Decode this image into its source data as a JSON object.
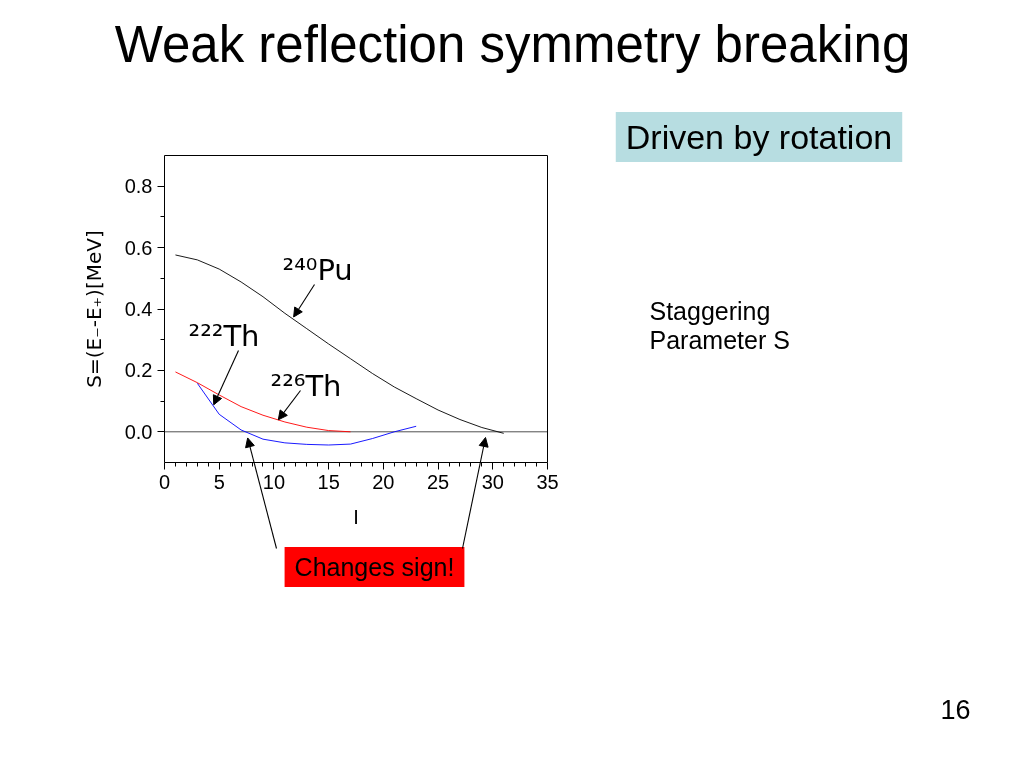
{
  "chart_data": {
    "type": "line",
    "title": "Weak reflection symmetry breaking",
    "xlabel": "I",
    "ylabel": "S=(E₋-E₊)[MeV]",
    "series": [
      {
        "color": "#000000",
        "x": [
          1,
          3,
          5,
          7,
          9,
          11,
          13,
          15,
          17,
          19,
          21,
          23,
          25,
          27,
          29,
          31
        ],
        "values": [
          0.576,
          0.56,
          0.53,
          0.488,
          0.44,
          0.386,
          0.336,
          0.286,
          0.238,
          0.19,
          0.146,
          0.108,
          0.071,
          0.04,
          0.014,
          -0.005
        ]
      },
      {
        "color": "#ff0000",
        "x": [
          1,
          3,
          5,
          7,
          9,
          11,
          13,
          15,
          17
        ],
        "values": [
          0.195,
          0.16,
          0.12,
          0.082,
          0.054,
          0.032,
          0.015,
          0.004,
          0.0
        ]
      },
      {
        "color": "#0000ff",
        "x": [
          3,
          5,
          7,
          9,
          11,
          13,
          15,
          17,
          19,
          21,
          23
        ],
        "values": [
          0.158,
          0.057,
          0.006,
          -0.024,
          -0.036,
          -0.041,
          -0.043,
          -0.04,
          -0.022,
          0.0,
          0.018
        ]
      }
    ],
    "xlim": [
      0,
      35
    ],
    "ylim": [
      -0.1,
      0.9
    ],
    "xticks": [
      0,
      {
        "value": 1,
        "label": null
      },
      {
        "value": 2,
        "label": null
      },
      {
        "value": 3,
        "label": null
      },
      {
        "value": 4,
        "label": null
      },
      5,
      {
        "value": 6,
        "label": null
      },
      {
        "value": 7,
        "label": null
      },
      {
        "value": 8,
        "label": null
      },
      {
        "value": 9,
        "label": null
      },
      10,
      {
        "value": 11,
        "label": null
      },
      {
        "value": 12,
        "label": null
      },
      {
        "value": 13,
        "label": null
      },
      {
        "value": 14,
        "label": null
      },
      15,
      {
        "value": 16,
        "label": null
      },
      {
        "value": 17,
        "label": null
      },
      {
        "value": 18,
        "label": null
      },
      {
        "value": 19,
        "label": null
      },
      20,
      {
        "value": 21,
        "label": null
      },
      {
        "value": 22,
        "label": null
      },
      {
        "value": 23,
        "label": null
      },
      {
        "value": 24,
        "label": null
      },
      25,
      {
        "value": 26,
        "label": null
      },
      {
        "value": 27,
        "label": null
      },
      {
        "value": 28,
        "label": null
      },
      {
        "value": 29,
        "label": null
      },
      30,
      {
        "value": 31,
        "label": null
      },
      {
        "value": 32,
        "label": null
      },
      {
        "value": 33,
        "label": null
      },
      {
        "value": 34,
        "label": null
      },
      35
    ],
    "yticks": [
      {
        "value": 0,
        "label": "0.0"
      },
      {
        "value": 0.1,
        "label": null
      },
      0.2,
      {
        "value": 0.3,
        "label": null
      },
      0.4,
      {
        "value": 0.5,
        "label": null
      },
      0.6,
      {
        "value": 0.7,
        "label": null
      },
      0.8
    ],
    "ref_lines": [
      {
        "axis": "y",
        "value": 0,
        "color": "#505050"
      }
    ],
    "grid": false,
    "annotations": [
      {
        "text": "²⁴⁰Pu",
        "x": 11.8,
        "y": 0.374
      },
      {
        "text": "²²²Th",
        "x": 4.5,
        "y": 0.088
      },
      {
        "text": "²²⁶Th",
        "x": 10.4,
        "y": 0.039
      },
      {
        "text": "Changes sign!",
        "x": 7.6,
        "y": -0.02
      },
      "Driven by rotation",
      "Staggering\nParameter S",
      "16"
    ]
  }
}
